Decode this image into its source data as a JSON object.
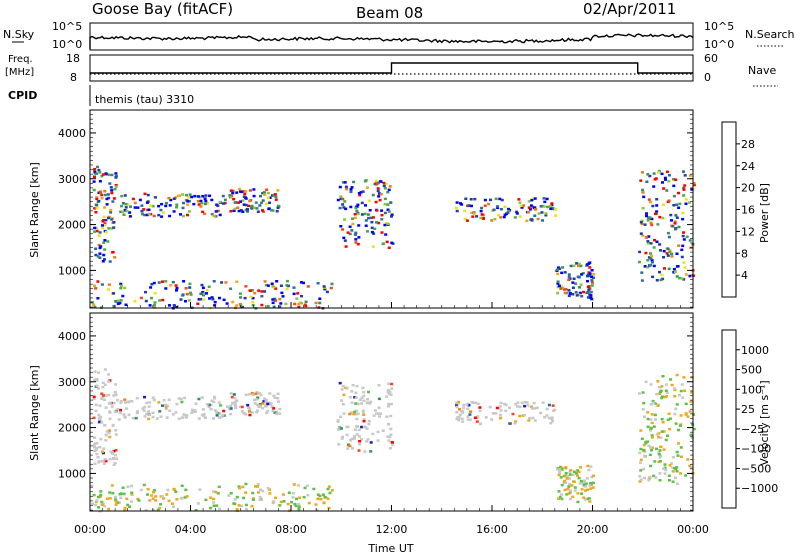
{
  "header": {
    "station": "Goose Bay (fitACF)",
    "beam": "Beam 08",
    "date": "02/Apr/2011"
  },
  "top_panels": {
    "nsky_label": "N.Sky",
    "nsky_ticks": [
      "10^5",
      "10^0"
    ],
    "nsearch_label": "N.Search",
    "nsearch_ticks": [
      "10^5",
      "10^0"
    ],
    "freq_label": "Freq.",
    "freq_unit": "[MHz]",
    "freq_ticks": [
      "18",
      "8"
    ],
    "nave_label": "Nave",
    "nave_ticks": [
      "60",
      "0"
    ],
    "cpid_label": "CPID",
    "cpid_value": "themis (tau) 3310",
    "freq_step_hours": [
      12.0,
      21.8
    ]
  },
  "chart_data": [
    {
      "type": "heatmap",
      "name": "power",
      "ylabel": "Slant Range [km]",
      "y_ticks": [
        "1000",
        "2000",
        "3000",
        "4000"
      ],
      "ylim": [
        180,
        4500
      ],
      "xlim": [
        0,
        24
      ],
      "colorbar_label": "Power [dB]",
      "colorbar_ticks": [
        "28",
        "24",
        "20",
        "16",
        "12",
        "8",
        "4"
      ],
      "colorbar_colors": [
        "#0000ff",
        "#1e3faa",
        "#2a6b9a",
        "#3c8b6a",
        "#4aa84a",
        "#8ac83a",
        "#e6e61a",
        "#f0a818",
        "#f07818",
        "#f04818",
        "#ff0000"
      ],
      "features": [
        {
          "t0": 0.1,
          "t1": 1.0,
          "r0": 1200,
          "r1": 3300
        },
        {
          "t0": 1.0,
          "t1": 5.5,
          "r0": 2200,
          "r1": 2700
        },
        {
          "t0": 5.5,
          "t1": 7.5,
          "r0": 2300,
          "r1": 2800
        },
        {
          "t0": 0.0,
          "t1": 9.6,
          "r0": 200,
          "r1": 800
        },
        {
          "t0": 9.8,
          "t1": 12.0,
          "r0": 1500,
          "r1": 3000
        },
        {
          "t0": 14.5,
          "t1": 18.5,
          "r0": 2100,
          "r1": 2600
        },
        {
          "t0": 18.5,
          "t1": 20.0,
          "r0": 400,
          "r1": 1200
        },
        {
          "t0": 21.8,
          "t1": 24.0,
          "r0": 800,
          "r1": 3200
        }
      ]
    },
    {
      "type": "heatmap",
      "name": "velocity",
      "ylabel": "Slant Range [km]",
      "y_ticks": [
        "1000",
        "2000",
        "3000",
        "4000"
      ],
      "ylim": [
        180,
        4500
      ],
      "xlim": [
        0,
        24
      ],
      "x_ticks": [
        "00:00",
        "04:00",
        "08:00",
        "12:00",
        "16:00",
        "20:00",
        "00:00"
      ],
      "xlabel": "Time UT",
      "colorbar_label": "Velocity [m s⁻¹]",
      "colorbar_ticks": [
        "1000",
        "500",
        "100",
        "25",
        "−25",
        "−100",
        "−500",
        "−1000"
      ],
      "colorbar_colors": [
        "#1020c0",
        "#2a6b9a",
        "#3c8b6a",
        "#5cc048",
        "#c8c8c8",
        "#f0a818",
        "#f08018",
        "#f04818",
        "#ff0000"
      ],
      "features": [
        {
          "t0": 0.1,
          "t1": 1.0,
          "r0": 1200,
          "r1": 3300
        },
        {
          "t0": 1.0,
          "t1": 5.5,
          "r0": 2200,
          "r1": 2700
        },
        {
          "t0": 5.5,
          "t1": 7.5,
          "r0": 2300,
          "r1": 2800
        },
        {
          "t0": 0.0,
          "t1": 9.6,
          "r0": 200,
          "r1": 800
        },
        {
          "t0": 9.8,
          "t1": 12.0,
          "r0": 1500,
          "r1": 3000
        },
        {
          "t0": 14.5,
          "t1": 18.5,
          "r0": 2100,
          "r1": 2600
        },
        {
          "t0": 18.5,
          "t1": 20.0,
          "r0": 400,
          "r1": 1200
        },
        {
          "t0": 21.8,
          "t1": 24.0,
          "r0": 800,
          "r1": 3200
        }
      ]
    }
  ]
}
